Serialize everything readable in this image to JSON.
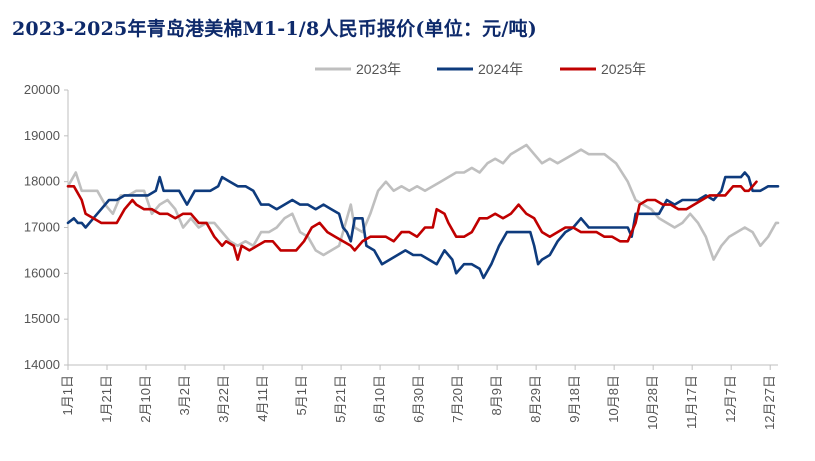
{
  "title": "2023-2025年青岛港美棉M1-1/8人民币报价(单位：元/吨)",
  "chart_data": {
    "type": "line",
    "title": "2023-2025年青岛港美棉M1-1/8人民币报价(单位：元/吨)",
    "xlabel": "",
    "ylabel": "",
    "ylim": [
      14000,
      20000
    ],
    "yticks": [
      14000,
      15000,
      16000,
      17000,
      18000,
      19000,
      20000
    ],
    "xticks": [
      "1月1日",
      "1月21日",
      "2月10日",
      "3月2日",
      "3月22日",
      "4月11日",
      "5月1日",
      "5月21日",
      "6月10日",
      "6月30日",
      "7月20日",
      "8月9日",
      "8月29日",
      "9月18日",
      "10月8日",
      "10月28日",
      "11月17日",
      "12月7日",
      "12月27日"
    ],
    "x_unit": "day of year",
    "legend_position": "top",
    "grid": false,
    "series": [
      {
        "name": "2023年",
        "color": "#bfbfbf",
        "points": [
          [
            1,
            17900
          ],
          [
            5,
            18200
          ],
          [
            8,
            17800
          ],
          [
            12,
            17800
          ],
          [
            16,
            17800
          ],
          [
            20,
            17500
          ],
          [
            24,
            17300
          ],
          [
            28,
            17700
          ],
          [
            32,
            17700
          ],
          [
            36,
            17800
          ],
          [
            40,
            17800
          ],
          [
            44,
            17300
          ],
          [
            48,
            17500
          ],
          [
            52,
            17600
          ],
          [
            56,
            17400
          ],
          [
            60,
            17000
          ],
          [
            64,
            17200
          ],
          [
            68,
            17000
          ],
          [
            72,
            17100
          ],
          [
            76,
            17100
          ],
          [
            80,
            16900
          ],
          [
            84,
            16700
          ],
          [
            88,
            16600
          ],
          [
            92,
            16700
          ],
          [
            96,
            16600
          ],
          [
            100,
            16900
          ],
          [
            104,
            16900
          ],
          [
            108,
            17000
          ],
          [
            112,
            17200
          ],
          [
            116,
            17300
          ],
          [
            120,
            16900
          ],
          [
            124,
            16800
          ],
          [
            128,
            16500
          ],
          [
            132,
            16400
          ],
          [
            136,
            16500
          ],
          [
            140,
            16600
          ],
          [
            144,
            17200
          ],
          [
            146,
            17500
          ],
          [
            148,
            17000
          ],
          [
            152,
            16900
          ],
          [
            156,
            17300
          ],
          [
            160,
            17800
          ],
          [
            164,
            18000
          ],
          [
            168,
            17800
          ],
          [
            172,
            17900
          ],
          [
            176,
            17800
          ],
          [
            180,
            17900
          ],
          [
            184,
            17800
          ],
          [
            188,
            17900
          ],
          [
            192,
            18000
          ],
          [
            196,
            18100
          ],
          [
            200,
            18200
          ],
          [
            204,
            18200
          ],
          [
            208,
            18300
          ],
          [
            212,
            18200
          ],
          [
            216,
            18400
          ],
          [
            220,
            18500
          ],
          [
            224,
            18400
          ],
          [
            228,
            18600
          ],
          [
            232,
            18700
          ],
          [
            236,
            18800
          ],
          [
            240,
            18600
          ],
          [
            244,
            18400
          ],
          [
            248,
            18500
          ],
          [
            252,
            18400
          ],
          [
            256,
            18500
          ],
          [
            260,
            18600
          ],
          [
            264,
            18700
          ],
          [
            268,
            18600
          ],
          [
            272,
            18600
          ],
          [
            276,
            18600
          ],
          [
            282,
            18400
          ],
          [
            288,
            18000
          ],
          [
            292,
            17600
          ],
          [
            296,
            17500
          ],
          [
            300,
            17400
          ],
          [
            304,
            17200
          ],
          [
            308,
            17100
          ],
          [
            312,
            17000
          ],
          [
            316,
            17100
          ],
          [
            320,
            17300
          ],
          [
            324,
            17100
          ],
          [
            328,
            16800
          ],
          [
            332,
            16300
          ],
          [
            336,
            16600
          ],
          [
            340,
            16800
          ],
          [
            344,
            16900
          ],
          [
            348,
            17000
          ],
          [
            352,
            16900
          ],
          [
            356,
            16600
          ],
          [
            360,
            16800
          ],
          [
            364,
            17100
          ],
          [
            365,
            17100
          ]
        ]
      },
      {
        "name": "2024年",
        "color": "#0e3b7d",
        "points": [
          [
            1,
            17100
          ],
          [
            4,
            17200
          ],
          [
            6,
            17100
          ],
          [
            8,
            17100
          ],
          [
            10,
            17000
          ],
          [
            14,
            17200
          ],
          [
            18,
            17400
          ],
          [
            22,
            17600
          ],
          [
            26,
            17600
          ],
          [
            30,
            17700
          ],
          [
            34,
            17700
          ],
          [
            38,
            17700
          ],
          [
            42,
            17700
          ],
          [
            46,
            17800
          ],
          [
            48,
            18100
          ],
          [
            50,
            17800
          ],
          [
            54,
            17800
          ],
          [
            58,
            17800
          ],
          [
            62,
            17500
          ],
          [
            66,
            17800
          ],
          [
            70,
            17800
          ],
          [
            74,
            17800
          ],
          [
            78,
            17900
          ],
          [
            80,
            18100
          ],
          [
            84,
            18000
          ],
          [
            88,
            17900
          ],
          [
            92,
            17900
          ],
          [
            96,
            17800
          ],
          [
            100,
            17500
          ],
          [
            104,
            17500
          ],
          [
            108,
            17400
          ],
          [
            112,
            17500
          ],
          [
            116,
            17600
          ],
          [
            120,
            17500
          ],
          [
            124,
            17500
          ],
          [
            128,
            17400
          ],
          [
            132,
            17500
          ],
          [
            136,
            17400
          ],
          [
            140,
            17300
          ],
          [
            142,
            17000
          ],
          [
            144,
            16900
          ],
          [
            146,
            16700
          ],
          [
            148,
            17200
          ],
          [
            152,
            17200
          ],
          [
            154,
            16600
          ],
          [
            158,
            16500
          ],
          [
            162,
            16200
          ],
          [
            166,
            16300
          ],
          [
            170,
            16400
          ],
          [
            174,
            16500
          ],
          [
            178,
            16400
          ],
          [
            182,
            16400
          ],
          [
            186,
            16300
          ],
          [
            190,
            16200
          ],
          [
            194,
            16500
          ],
          [
            198,
            16300
          ],
          [
            200,
            16000
          ],
          [
            204,
            16200
          ],
          [
            208,
            16200
          ],
          [
            212,
            16100
          ],
          [
            214,
            15900
          ],
          [
            218,
            16200
          ],
          [
            222,
            16600
          ],
          [
            226,
            16900
          ],
          [
            230,
            16900
          ],
          [
            234,
            16900
          ],
          [
            238,
            16900
          ],
          [
            240,
            16600
          ],
          [
            242,
            16200
          ],
          [
            244,
            16300
          ],
          [
            248,
            16400
          ],
          [
            252,
            16700
          ],
          [
            256,
            16900
          ],
          [
            260,
            17000
          ],
          [
            264,
            17200
          ],
          [
            268,
            17000
          ],
          [
            272,
            17000
          ],
          [
            276,
            17000
          ],
          [
            280,
            17000
          ],
          [
            284,
            17000
          ],
          [
            288,
            17000
          ],
          [
            290,
            16800
          ],
          [
            292,
            17300
          ],
          [
            296,
            17300
          ],
          [
            300,
            17300
          ],
          [
            304,
            17300
          ],
          [
            308,
            17600
          ],
          [
            312,
            17500
          ],
          [
            316,
            17600
          ],
          [
            320,
            17600
          ],
          [
            324,
            17600
          ],
          [
            328,
            17700
          ],
          [
            332,
            17600
          ],
          [
            336,
            17800
          ],
          [
            338,
            18100
          ],
          [
            342,
            18100
          ],
          [
            346,
            18100
          ],
          [
            348,
            18200
          ],
          [
            350,
            18100
          ],
          [
            352,
            17800
          ],
          [
            356,
            17800
          ],
          [
            360,
            17900
          ],
          [
            364,
            17900
          ],
          [
            365,
            17900
          ]
        ]
      },
      {
        "name": "2025年",
        "color": "#c00000",
        "points": [
          [
            1,
            17900
          ],
          [
            4,
            17900
          ],
          [
            8,
            17600
          ],
          [
            10,
            17300
          ],
          [
            14,
            17200
          ],
          [
            18,
            17100
          ],
          [
            22,
            17100
          ],
          [
            26,
            17100
          ],
          [
            30,
            17400
          ],
          [
            34,
            17600
          ],
          [
            36,
            17500
          ],
          [
            40,
            17400
          ],
          [
            44,
            17400
          ],
          [
            48,
            17300
          ],
          [
            52,
            17300
          ],
          [
            56,
            17200
          ],
          [
            60,
            17300
          ],
          [
            64,
            17300
          ],
          [
            68,
            17100
          ],
          [
            72,
            17100
          ],
          [
            76,
            16800
          ],
          [
            80,
            16600
          ],
          [
            82,
            16700
          ],
          [
            86,
            16600
          ],
          [
            88,
            16300
          ],
          [
            90,
            16600
          ],
          [
            94,
            16500
          ],
          [
            98,
            16600
          ],
          [
            102,
            16700
          ],
          [
            106,
            16700
          ],
          [
            110,
            16500
          ],
          [
            114,
            16500
          ],
          [
            118,
            16500
          ],
          [
            122,
            16700
          ],
          [
            126,
            17000
          ],
          [
            130,
            17100
          ],
          [
            134,
            16900
          ],
          [
            138,
            16800
          ],
          [
            142,
            16700
          ],
          [
            146,
            16600
          ],
          [
            148,
            16500
          ],
          [
            152,
            16700
          ],
          [
            156,
            16800
          ],
          [
            160,
            16800
          ],
          [
            164,
            16800
          ],
          [
            168,
            16700
          ],
          [
            172,
            16900
          ],
          [
            176,
            16900
          ],
          [
            180,
            16800
          ],
          [
            184,
            17000
          ],
          [
            188,
            17000
          ],
          [
            190,
            17400
          ],
          [
            194,
            17300
          ],
          [
            196,
            17100
          ],
          [
            200,
            16800
          ],
          [
            204,
            16800
          ],
          [
            208,
            16900
          ],
          [
            212,
            17200
          ],
          [
            216,
            17200
          ],
          [
            220,
            17300
          ],
          [
            224,
            17200
          ],
          [
            228,
            17300
          ],
          [
            232,
            17500
          ],
          [
            236,
            17300
          ],
          [
            240,
            17200
          ],
          [
            244,
            16900
          ],
          [
            248,
            16800
          ],
          [
            252,
            16900
          ],
          [
            256,
            17000
          ],
          [
            260,
            17000
          ],
          [
            264,
            16900
          ],
          [
            268,
            16900
          ],
          [
            272,
            16900
          ],
          [
            276,
            16800
          ],
          [
            280,
            16800
          ],
          [
            284,
            16700
          ],
          [
            288,
            16700
          ],
          [
            292,
            17100
          ],
          [
            294,
            17500
          ],
          [
            298,
            17600
          ],
          [
            302,
            17600
          ],
          [
            306,
            17500
          ],
          [
            310,
            17500
          ],
          [
            314,
            17400
          ],
          [
            318,
            17400
          ],
          [
            322,
            17500
          ],
          [
            326,
            17600
          ],
          [
            330,
            17700
          ],
          [
            334,
            17700
          ],
          [
            338,
            17700
          ],
          [
            342,
            17900
          ],
          [
            346,
            17900
          ],
          [
            348,
            17800
          ],
          [
            350,
            17800
          ],
          [
            352,
            17900
          ],
          [
            354,
            18000
          ]
        ]
      }
    ]
  }
}
